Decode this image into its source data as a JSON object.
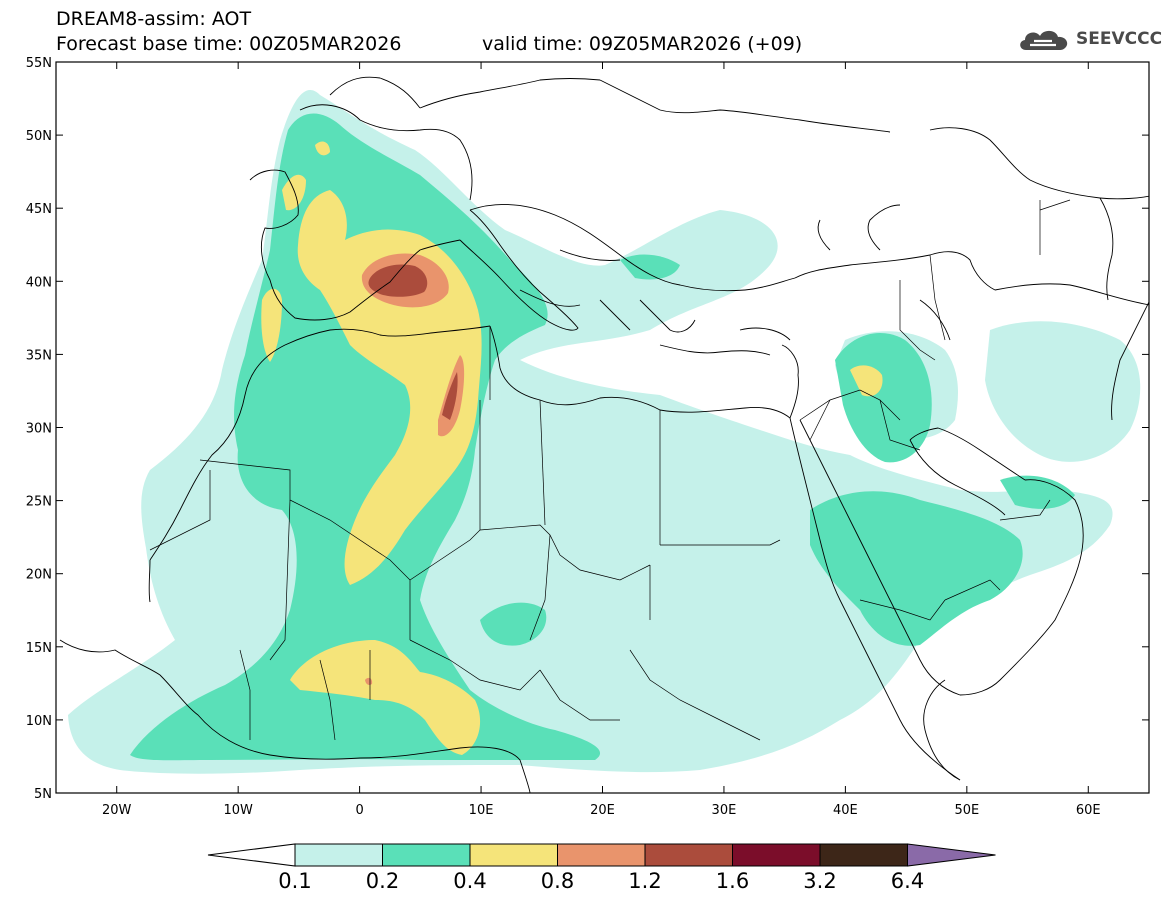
{
  "header": {
    "line1": "DREAM8-assim: AOT",
    "line2": "Forecast base time: 00Z05MAR2026",
    "valid": "valid time: 09Z05MAR2026 (+09)"
  },
  "logo": {
    "text": "SEEVCCC",
    "icon": "cloud-icon",
    "color": "#4a4a4a"
  },
  "map": {
    "lon_range": [
      -25,
      65
    ],
    "lat_range": [
      5,
      55
    ],
    "lat_ticks": [
      {
        "value": 55,
        "label": "55N"
      },
      {
        "value": 50,
        "label": "50N"
      },
      {
        "value": 45,
        "label": "45N"
      },
      {
        "value": 40,
        "label": "40N"
      },
      {
        "value": 35,
        "label": "35N"
      },
      {
        "value": 30,
        "label": "30N"
      },
      {
        "value": 25,
        "label": "25N"
      },
      {
        "value": 20,
        "label": "20N"
      },
      {
        "value": 15,
        "label": "15N"
      },
      {
        "value": 10,
        "label": "10N"
      },
      {
        "value": 5,
        "label": "5N"
      }
    ],
    "lon_ticks": [
      {
        "value": -20,
        "label": "20W"
      },
      {
        "value": -10,
        "label": "10W"
      },
      {
        "value": 0,
        "label": "0"
      },
      {
        "value": 10,
        "label": "10E"
      },
      {
        "value": 20,
        "label": "20E"
      },
      {
        "value": 30,
        "label": "30E"
      },
      {
        "value": 40,
        "label": "40E"
      },
      {
        "value": 50,
        "label": "50E"
      },
      {
        "value": 60,
        "label": "60E"
      }
    ]
  },
  "colorbar": {
    "labels": [
      "0.1",
      "0.2",
      "0.4",
      "0.8",
      "1.2",
      "1.6",
      "3.2",
      "6.4"
    ],
    "colors": [
      "#ffffff",
      "#c5f1ea",
      "#5ae0b8",
      "#f5e47a",
      "#e9946c",
      "#ab4c3c",
      "#7b0d2a",
      "#3d2618",
      "#8a6aa8"
    ]
  }
}
